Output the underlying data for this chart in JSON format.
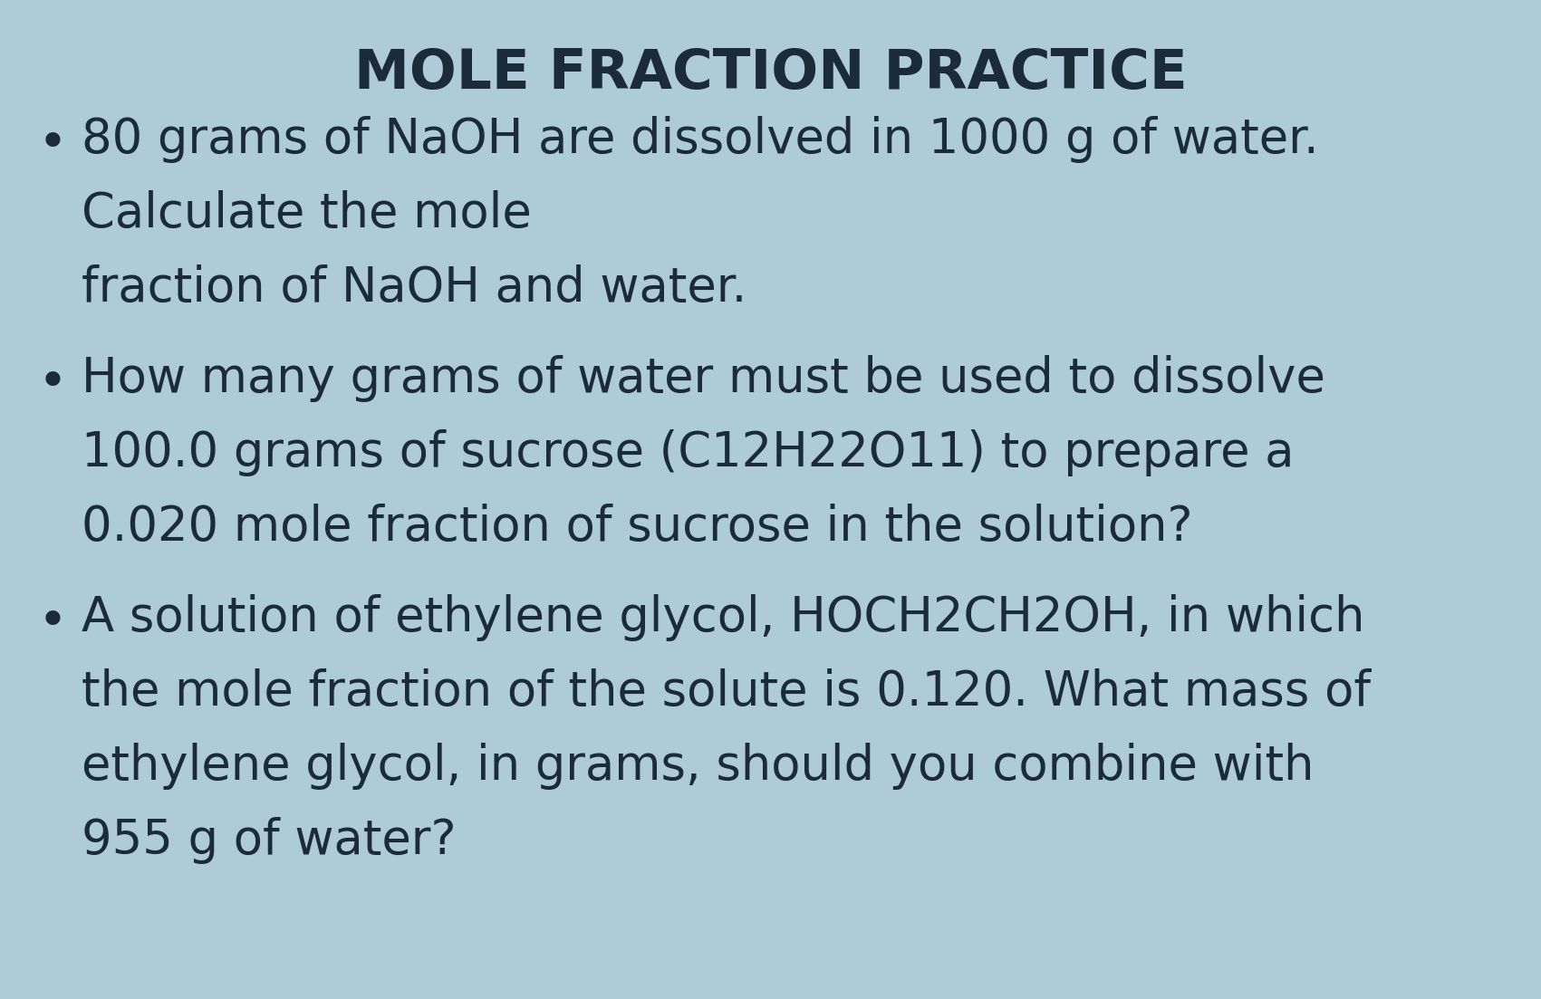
{
  "title": "MOLE FRACTION PRACTICE",
  "title_fontsize": 44,
  "title_fontweight": "bold",
  "title_color": "#1c2b3a",
  "bullet_fontsize": 38,
  "bullet_color": "#1c2b3a",
  "background_color": "#aeccd8",
  "line1_1": "80 grams of NaOH are dissolved in 1000 g of water.",
  "line1_2": "Calculate the mole",
  "line1_3": "fraction of NaOH and water.",
  "line2_1": "How many grams of water must be used to dissolve",
  "line2_2": "100.0 grams of sucrose (C12H22O11) to prepare a",
  "line2_3": "0.020 mole fraction of sucrose in the solution?",
  "line3_1": "A solution of ethylene glycol, HOCH2CH2OH, in which",
  "line3_2": "the mole fraction of the solute is 0.120. What mass of",
  "line3_3": "ethylene glycol, in grams, should you combine with",
  "line3_4": "955 g of water?",
  "figwidth": 17.01,
  "figheight": 11.03,
  "dpi": 100
}
